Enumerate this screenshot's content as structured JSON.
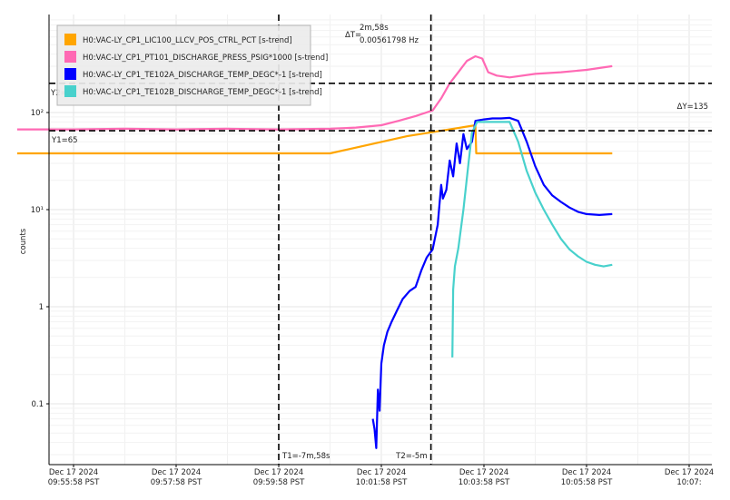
{
  "chart_data": {
    "type": "line",
    "ylabel": "counts",
    "yscale": "log",
    "ylim": [
      0.025,
      250
    ],
    "xlim": [
      -66,
      840
    ],
    "x_unit": "seconds relative to Dec 17 2024 09:55:58 PST",
    "x_ticks": [
      {
        "t": 0,
        "line1": "Dec 17 2024",
        "line2": "09:55:58 PST"
      },
      {
        "t": 120,
        "line1": "Dec 17 2024",
        "line2": "09:57:58 PST"
      },
      {
        "t": 240,
        "line1": "Dec 17 2024",
        "line2": "09:59:58 PST"
      },
      {
        "t": 360,
        "line1": "Dec 17 2024",
        "line2": "10:01:58 PST"
      },
      {
        "t": 480,
        "line1": "Dec 17 2024",
        "line2": "10:03:58 PST"
      },
      {
        "t": 600,
        "line1": "Dec 17 2024",
        "line2": "10:05:58 PST"
      },
      {
        "t": 720,
        "line1": "Dec 17 2024",
        "line2": "10:07:"
      }
    ],
    "y_ticks": [
      {
        "v": 0.1,
        "label": "0.1"
      },
      {
        "v": 1,
        "label": "1"
      },
      {
        "v": 10,
        "label": "10¹"
      },
      {
        "v": 100,
        "label": "10²"
      }
    ],
    "grid": true,
    "legend_position": "top-left",
    "series": [
      {
        "name": "H0:VAC-LY_CP1_LIC100_LLCV_POS_CTRL_PCT [s-trend]",
        "color": "#ffa500",
        "points": [
          [
            -66,
            38
          ],
          [
            300,
            38
          ],
          [
            390,
            57
          ],
          [
            470,
            74
          ],
          [
            471,
            38
          ],
          [
            630,
            38
          ]
        ]
      },
      {
        "name": "H0:VAC-LY_CP1_PT101_DISCHARGE_PRESS_PSIG*1000 [s-trend]",
        "color": "#ff69b4",
        "points": [
          [
            -66,
            67
          ],
          [
            0,
            67
          ],
          [
            60,
            68
          ],
          [
            120,
            67
          ],
          [
            180,
            68
          ],
          [
            240,
            67
          ],
          [
            300,
            68
          ],
          [
            330,
            70
          ],
          [
            360,
            74
          ],
          [
            380,
            82
          ],
          [
            400,
            92
          ],
          [
            420,
            105
          ],
          [
            430,
            140
          ],
          [
            440,
            200
          ],
          [
            450,
            260
          ],
          [
            460,
            340
          ],
          [
            470,
            380
          ],
          [
            478,
            360
          ],
          [
            485,
            260
          ],
          [
            495,
            240
          ],
          [
            510,
            230
          ],
          [
            540,
            250
          ],
          [
            570,
            260
          ],
          [
            600,
            275
          ],
          [
            630,
            300
          ]
        ]
      },
      {
        "name": "H0:VAC-LY_CP1_TE102A_DISCHARGE_TEMP_DEGC*-1 [s-trend]",
        "color": "#0000ff",
        "points": [
          [
            350,
            0.07
          ],
          [
            352,
            0.055
          ],
          [
            354,
            0.035
          ],
          [
            356,
            0.14
          ],
          [
            358,
            0.085
          ],
          [
            360,
            0.26
          ],
          [
            363,
            0.4
          ],
          [
            367,
            0.55
          ],
          [
            372,
            0.7
          ],
          [
            378,
            0.9
          ],
          [
            385,
            1.2
          ],
          [
            393,
            1.45
          ],
          [
            400,
            1.6
          ],
          [
            407,
            2.4
          ],
          [
            413,
            3.2
          ],
          [
            420,
            3.9
          ],
          [
            426,
            7.0
          ],
          [
            430,
            18
          ],
          [
            432,
            13
          ],
          [
            436,
            16
          ],
          [
            440,
            32
          ],
          [
            444,
            22
          ],
          [
            448,
            48
          ],
          [
            452,
            30
          ],
          [
            456,
            60
          ],
          [
            460,
            42
          ],
          [
            466,
            50
          ],
          [
            470,
            82
          ],
          [
            480,
            85
          ],
          [
            490,
            87
          ],
          [
            500,
            87
          ],
          [
            510,
            88
          ],
          [
            520,
            82
          ],
          [
            530,
            50
          ],
          [
            540,
            28
          ],
          [
            550,
            18
          ],
          [
            560,
            14
          ],
          [
            570,
            12
          ],
          [
            580,
            10.5
          ],
          [
            590,
            9.5
          ],
          [
            600,
            9.0
          ],
          [
            615,
            8.8
          ],
          [
            630,
            9.0
          ]
        ]
      },
      {
        "name": "H0:VAC-LY_CP1_TE102B_DISCHARGE_TEMP_DEGC*-1 [s-trend]",
        "color": "#48d1cc",
        "points": [
          [
            443,
            0.3
          ],
          [
            444,
            1.5
          ],
          [
            446,
            2.6
          ],
          [
            450,
            4.0
          ],
          [
            456,
            10
          ],
          [
            462,
            30
          ],
          [
            466,
            62
          ],
          [
            472,
            80
          ],
          [
            490,
            80
          ],
          [
            510,
            80
          ],
          [
            520,
            50
          ],
          [
            530,
            25
          ],
          [
            540,
            15
          ],
          [
            550,
            10
          ],
          [
            560,
            7
          ],
          [
            570,
            5
          ],
          [
            580,
            3.9
          ],
          [
            590,
            3.3
          ],
          [
            600,
            2.9
          ],
          [
            610,
            2.7
          ],
          [
            620,
            2.6
          ],
          [
            630,
            2.7
          ]
        ]
      }
    ],
    "cursors": {
      "t1": {
        "t": 240,
        "label": "T1=-7m,58s"
      },
      "t2": {
        "t": 418,
        "label": "T2=-5m"
      },
      "delta_t": {
        "label": "ΔT=",
        "line1": "2m,58s",
        "line2": "0.00561798 Hz"
      },
      "y1": {
        "v": 65,
        "label": "Y1=65"
      },
      "y2": {
        "v": 200,
        "label": "Y2="
      },
      "delta_y": {
        "label": "ΔY=135"
      }
    }
  },
  "colors": {
    "grid": "#e4e4e4",
    "axis": "#000000",
    "cursor": "#000000",
    "legend_bg": "#ececec",
    "legend_border": "#b5b5b5"
  }
}
